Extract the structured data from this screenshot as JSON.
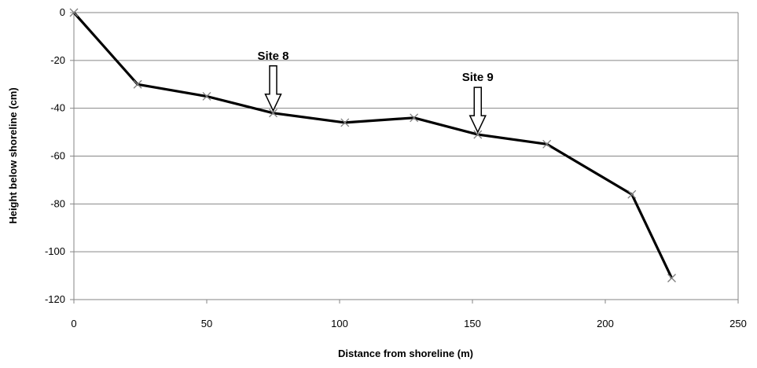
{
  "chart_data": {
    "type": "line",
    "title": "",
    "xlabel": "Distance from shoreline (m)",
    "ylabel": "Height below shoreline (cm)",
    "xlim": [
      0,
      250
    ],
    "ylim": [
      -120,
      0
    ],
    "xticks": [
      "0",
      "50",
      "100",
      "150",
      "200",
      "250"
    ],
    "yticks": [
      "0",
      "-20",
      "-40",
      "-60",
      "-80",
      "-100",
      "-120"
    ],
    "grid": "horizontal",
    "legend": "none",
    "series": [
      {
        "x": [
          0,
          24,
          50,
          75,
          102,
          128,
          152,
          178,
          210,
          225
        ],
        "y": [
          0,
          -30,
          -35,
          -42,
          -46,
          -44,
          -51,
          -55,
          -76,
          -111
        ],
        "marker": "x",
        "line_color": "#000000",
        "marker_color": "#7f7f7f"
      }
    ],
    "annotations": [
      {
        "label": "Site 8",
        "x": 75,
        "y": -42
      },
      {
        "label": "Site 9",
        "x": 152,
        "y": -51
      }
    ]
  }
}
